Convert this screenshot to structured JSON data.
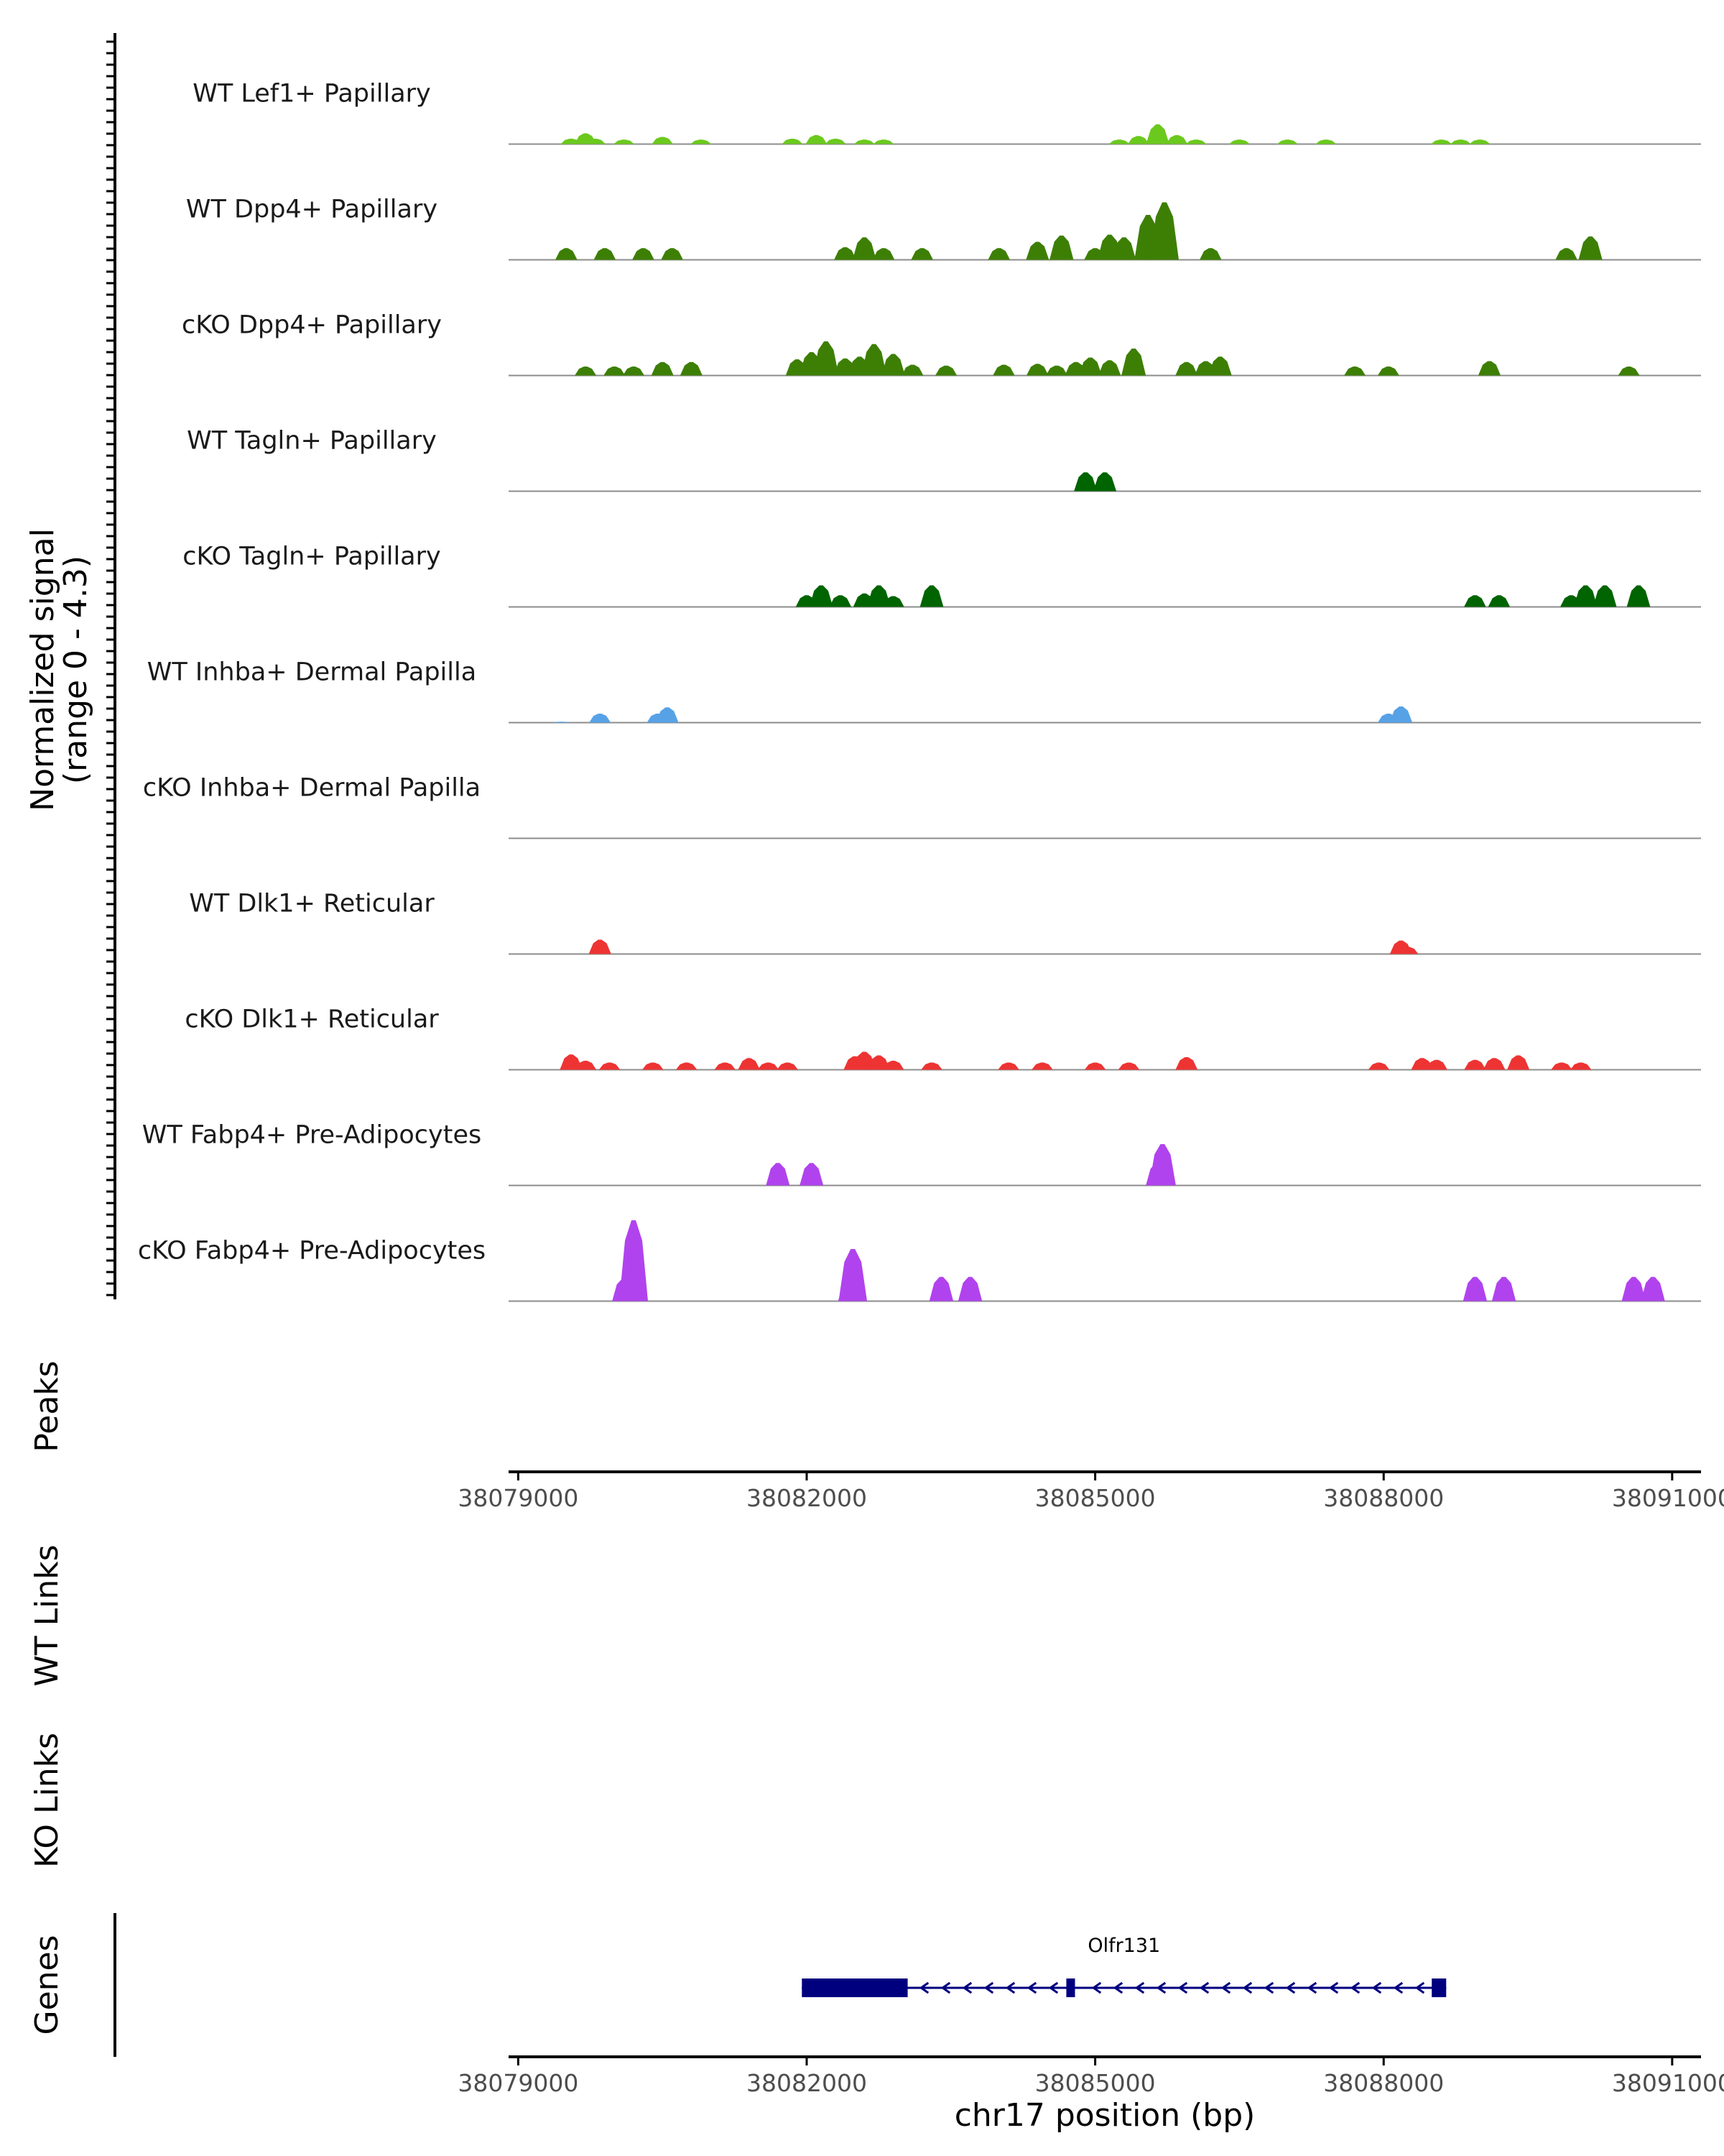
{
  "chart_data": {
    "type": "area",
    "title": "",
    "chromosome": "chr17",
    "xlabel": "chr17 position (bp)",
    "ylabel": "Normalized signal",
    "ylabel_sub": "(range 0 - 4.3)",
    "xlim": [
      38078900,
      38091300
    ],
    "ylim": [
      0,
      4.3
    ],
    "x_ticks": [
      38079000,
      38082000,
      38085000,
      38088000,
      38091000
    ],
    "x_tick_labels": [
      "38079000",
      "38082000",
      "38085000",
      "38088000",
      "38091000"
    ],
    "series": [
      {
        "name": "WT Lef1+ Papillary",
        "color": "#6bc91e",
        "peaks": [
          [
            38079550,
            0.6
          ],
          [
            38079700,
            1.2
          ],
          [
            38079800,
            0.6
          ],
          [
            38080100,
            0.5
          ],
          [
            38080500,
            0.8
          ],
          [
            38080900,
            0.5
          ],
          [
            38081850,
            0.6
          ],
          [
            38082100,
            1.0
          ],
          [
            38082300,
            0.6
          ],
          [
            38082600,
            0.5
          ],
          [
            38082800,
            0.5
          ],
          [
            38085250,
            0.5
          ],
          [
            38085450,
            0.9
          ],
          [
            38085650,
            2.2
          ],
          [
            38085850,
            1.0
          ],
          [
            38086050,
            0.5
          ],
          [
            38086500,
            0.5
          ],
          [
            38087000,
            0.5
          ],
          [
            38087400,
            0.5
          ],
          [
            38088600,
            0.5
          ],
          [
            38088800,
            0.5
          ],
          [
            38089000,
            0.5
          ]
        ]
      },
      {
        "name": "WT Dpp4+ Papillary",
        "color": "#3d7f05",
        "peaks": [
          [
            38079500,
            1.3
          ],
          [
            38079900,
            1.3
          ],
          [
            38080300,
            1.3
          ],
          [
            38080600,
            1.3
          ],
          [
            38082400,
            1.4
          ],
          [
            38082600,
            2.5
          ],
          [
            38082800,
            1.3
          ],
          [
            38083200,
            1.3
          ],
          [
            38084000,
            1.3
          ],
          [
            38084400,
            2.0
          ],
          [
            38084650,
            2.7
          ],
          [
            38085000,
            1.3
          ],
          [
            38085150,
            2.8
          ],
          [
            38085300,
            2.5
          ],
          [
            38085550,
            5.0
          ],
          [
            38085720,
            6.4
          ],
          [
            38086200,
            1.3
          ],
          [
            38089900,
            1.3
          ],
          [
            38090150,
            2.6
          ]
        ]
      },
      {
        "name": "cKO Dpp4+ Papillary",
        "color": "#3d7f05",
        "peaks": [
          [
            38079700,
            1.0
          ],
          [
            38080000,
            1.0
          ],
          [
            38080200,
            1.0
          ],
          [
            38080500,
            1.5
          ],
          [
            38080800,
            1.5
          ],
          [
            38081900,
            1.8
          ],
          [
            38082050,
            2.6
          ],
          [
            38082200,
            3.8
          ],
          [
            38082400,
            1.9
          ],
          [
            38082550,
            2.1
          ],
          [
            38082700,
            3.5
          ],
          [
            38082900,
            2.4
          ],
          [
            38083100,
            1.2
          ],
          [
            38083450,
            1.1
          ],
          [
            38084050,
            1.2
          ],
          [
            38084400,
            1.3
          ],
          [
            38084600,
            1.1
          ],
          [
            38084800,
            1.5
          ],
          [
            38084950,
            2.0
          ],
          [
            38085150,
            1.7
          ],
          [
            38085400,
            3.0
          ],
          [
            38085950,
            1.5
          ],
          [
            38086150,
            1.6
          ],
          [
            38086300,
            2.1
          ],
          [
            38087700,
            1.0
          ],
          [
            38088050,
            1.0
          ],
          [
            38089100,
            1.6
          ],
          [
            38090550,
            1.0
          ]
        ]
      },
      {
        "name": "WT Tagln+ Papillary",
        "color": "#006400",
        "peaks": [
          [
            38084900,
            2.1
          ],
          [
            38085100,
            2.1
          ]
        ]
      },
      {
        "name": "cKO Tagln+ Papillary",
        "color": "#006400",
        "peaks": [
          [
            38082000,
            1.3
          ],
          [
            38082150,
            2.4
          ],
          [
            38082350,
            1.3
          ],
          [
            38082600,
            1.5
          ],
          [
            38082750,
            2.4
          ],
          [
            38082900,
            1.2
          ],
          [
            38083300,
            2.4
          ],
          [
            38088950,
            1.3
          ],
          [
            38089200,
            1.3
          ],
          [
            38089950,
            1.3
          ],
          [
            38090100,
            2.4
          ],
          [
            38090300,
            2.4
          ],
          [
            38090650,
            2.4
          ]
        ]
      },
      {
        "name": "WT Inhba+ Dermal Papilla",
        "color": "#57a2e6",
        "peaks": [
          [
            38079450,
            0.1
          ],
          [
            38079850,
            1.0
          ],
          [
            38080450,
            1.0
          ],
          [
            38080550,
            1.7
          ],
          [
            38088050,
            1.0
          ],
          [
            38088180,
            1.8
          ]
        ]
      },
      {
        "name": "cKO Inhba+ Dermal Papilla",
        "color": "#57a2e6",
        "peaks": []
      },
      {
        "name": "WT Dlk1+ Reticular",
        "color": "#ee3333",
        "peaks": [
          [
            38079850,
            1.6
          ],
          [
            38088180,
            1.5
          ],
          [
            38088250,
            0.8
          ]
        ]
      },
      {
        "name": "cKO Dlk1+ Reticular",
        "color": "#ee3333",
        "peaks": [
          [
            38079550,
            1.7
          ],
          [
            38079700,
            1.0
          ],
          [
            38079950,
            0.8
          ],
          [
            38080400,
            0.8
          ],
          [
            38080750,
            0.8
          ],
          [
            38081150,
            0.8
          ],
          [
            38081400,
            1.3
          ],
          [
            38081600,
            0.8
          ],
          [
            38081800,
            0.8
          ],
          [
            38082500,
            1.5
          ],
          [
            38082600,
            2.0
          ],
          [
            38082750,
            1.6
          ],
          [
            38082900,
            1.0
          ],
          [
            38083300,
            0.8
          ],
          [
            38084100,
            0.8
          ],
          [
            38084450,
            0.8
          ],
          [
            38085000,
            0.8
          ],
          [
            38085350,
            0.8
          ],
          [
            38085950,
            1.4
          ],
          [
            38087950,
            0.8
          ],
          [
            38088400,
            1.3
          ],
          [
            38088550,
            1.1
          ],
          [
            38088950,
            1.1
          ],
          [
            38089150,
            1.3
          ],
          [
            38089400,
            1.6
          ],
          [
            38089850,
            0.8
          ],
          [
            38090050,
            0.8
          ]
        ]
      },
      {
        "name": "WT Fabp4+ Pre-Adipocytes",
        "color": "#b043ee",
        "peaks": [
          [
            38081700,
            2.5
          ],
          [
            38082050,
            2.5
          ],
          [
            38085650,
            2.5
          ],
          [
            38085700,
            4.6
          ]
        ]
      },
      {
        "name": "cKO Fabp4+ Pre-Adipocytes",
        "color": "#b043ee",
        "peaks": [
          [
            38080100,
            2.5
          ],
          [
            38080200,
            9.0
          ],
          [
            38082450,
            2.5
          ],
          [
            38082480,
            5.8
          ],
          [
            38083400,
            2.7
          ],
          [
            38083700,
            2.7
          ],
          [
            38088950,
            2.7
          ],
          [
            38089250,
            2.7
          ],
          [
            38090600,
            2.7
          ],
          [
            38090800,
            2.7
          ]
        ]
      }
    ],
    "side_tracks": [
      "Peaks",
      "WT Links",
      "KO Links",
      "Genes"
    ],
    "genes": [
      {
        "name": "Olfr131",
        "start": 38081950,
        "end": 38088650,
        "strand": "-",
        "exons": [
          [
            38081950,
            38083050
          ],
          [
            38084700,
            38084790
          ],
          [
            38088500,
            38088650
          ]
        ]
      }
    ]
  }
}
